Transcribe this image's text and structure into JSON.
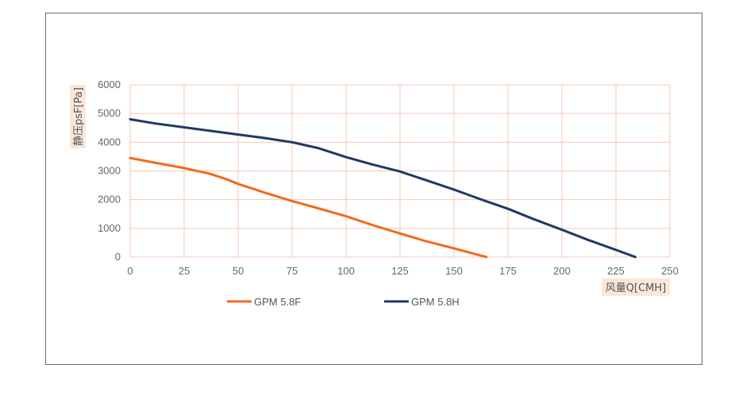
{
  "chart_data": {
    "type": "line",
    "title": "",
    "xlabel": "风量Q[CMH]",
    "ylabel": "静压psF[Pa]",
    "xlim": [
      0,
      250
    ],
    "ylim": [
      0,
      6000
    ],
    "xticks": [
      0,
      25,
      50,
      75,
      100,
      125,
      150,
      175,
      200,
      225,
      250
    ],
    "yticks": [
      0,
      1000,
      2000,
      3000,
      4000,
      5000,
      6000
    ],
    "grid": true,
    "legend_position": "bottom",
    "colors": {
      "grid": "#f2c9b6",
      "axis_label_bg": "#fbe6da"
    },
    "series": [
      {
        "name": "GPM 5.8F",
        "color": "#f26a1b",
        "x": [
          0,
          12,
          25,
          37,
          45,
          50,
          62,
          75,
          87,
          100,
          112,
          125,
          137,
          150,
          160,
          165
        ],
        "values": [
          3450,
          3280,
          3100,
          2900,
          2700,
          2550,
          2250,
          1950,
          1700,
          1420,
          1120,
          820,
          550,
          300,
          100,
          0
        ]
      },
      {
        "name": "GPM 5.8H",
        "color": "#1f3864",
        "x": [
          0,
          12,
          25,
          37,
          50,
          62,
          75,
          87,
          100,
          112,
          125,
          137,
          150,
          162,
          175,
          187,
          200,
          212,
          225,
          234
        ],
        "values": [
          4800,
          4650,
          4520,
          4400,
          4270,
          4150,
          4000,
          3800,
          3480,
          3230,
          2980,
          2680,
          2350,
          2020,
          1680,
          1320,
          950,
          600,
          250,
          0
        ]
      }
    ]
  }
}
